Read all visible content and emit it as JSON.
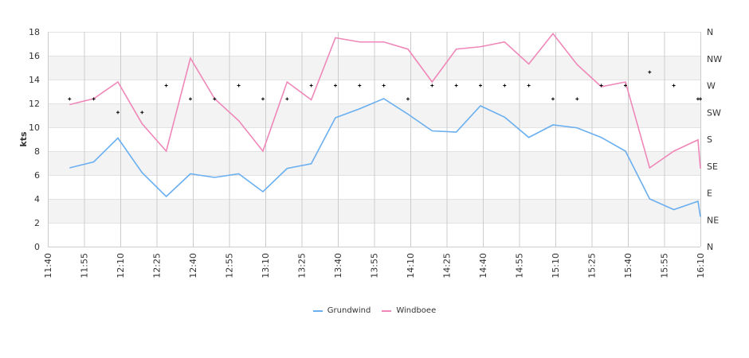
{
  "chart_data": {
    "type": "line",
    "ylabel": "kts",
    "ylim": [
      0,
      18
    ],
    "y_ticks": [
      "0",
      "2",
      "4",
      "6",
      "8",
      "10",
      "12",
      "14",
      "16",
      "18"
    ],
    "x_ticks": [
      "11:40",
      "11:55",
      "12:10",
      "12:25",
      "12:40",
      "12:55",
      "13:10",
      "13:25",
      "13:40",
      "13:55",
      "14:10",
      "14:25",
      "14:40",
      "14:55",
      "15:10",
      "15:25",
      "15:40",
      "15:55",
      "16:10"
    ],
    "xlim": [
      "11:40",
      "16:10"
    ],
    "right_axis_ticks": [
      "N",
      "NE",
      "E",
      "SE",
      "S",
      "SW",
      "W",
      "NW",
      "N"
    ],
    "right_axis_range_deg": [
      0,
      360
    ],
    "grid": "horizontal alternating bands, vertical lines at x ticks",
    "legend_position": "bottom",
    "x": [
      "11:49",
      "11:59",
      "12:09",
      "12:19",
      "12:29",
      "12:39",
      "12:49",
      "12:59",
      "13:09",
      "13:19",
      "13:29",
      "13:39",
      "13:49",
      "13:59",
      "14:09",
      "14:19",
      "14:29",
      "14:39",
      "14:49",
      "14:59",
      "15:09",
      "15:19",
      "15:29",
      "15:39",
      "15:49",
      "15:59",
      "16:09",
      "16:10"
    ],
    "series": [
      {
        "name": "Grundwind",
        "color": "#6aaff0",
        "values": [
          6.6,
          7.1,
          9.1,
          6.2,
          4.2,
          6.1,
          5.8,
          6.1,
          4.6,
          6.55,
          6.95,
          10.8,
          11.55,
          12.4,
          11.1,
          9.7,
          9.6,
          11.8,
          10.85,
          9.15,
          10.2,
          9.95,
          9.15,
          8.0,
          4.0,
          3.1,
          3.8,
          2.5
        ]
      },
      {
        "name": "Windboee",
        "color": "#ef87b8",
        "values": [
          11.9,
          12.4,
          13.8,
          10.3,
          8.0,
          15.8,
          12.4,
          10.55,
          8.0,
          13.8,
          12.3,
          17.5,
          17.15,
          17.15,
          16.55,
          13.8,
          16.55,
          16.75,
          17.15,
          15.3,
          17.85,
          15.25,
          13.4,
          13.8,
          6.6,
          8.0,
          8.95,
          6.55
        ]
      }
    ],
    "direction_deg": [
      247.5,
      247.5,
      225,
      225,
      270,
      247.5,
      247.5,
      270,
      247.5,
      247.5,
      270,
      270,
      270,
      270,
      247.5,
      270,
      270,
      270,
      270,
      270,
      247.5,
      247.5,
      270,
      270,
      292.5,
      270,
      247.5,
      247.5
    ]
  }
}
